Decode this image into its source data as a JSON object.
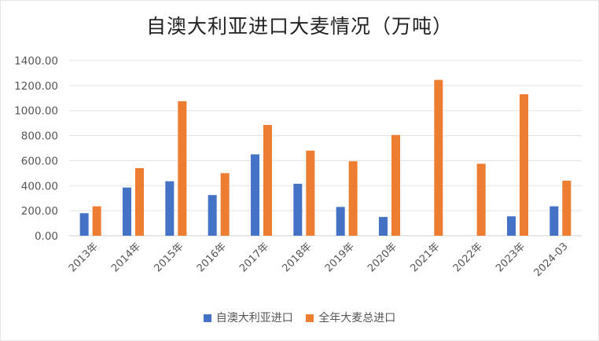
{
  "chart_data": {
    "type": "bar",
    "title": "自澳大利亚进口大麦情况（万吨）",
    "categories": [
      "2013年",
      "2014年",
      "2015年",
      "2016年",
      "2017年",
      "2018年",
      "2019年",
      "2020年",
      "2021年",
      "2022年",
      "2023年",
      "2024-03"
    ],
    "series": [
      {
        "name": "自澳大利亚进口",
        "color": "#4472c4",
        "values": [
          180,
          385,
          435,
          325,
          650,
          415,
          230,
          150,
          null,
          null,
          155,
          235
        ]
      },
      {
        "name": "全年大麦总进口",
        "color": "#ed7d31",
        "values": [
          235,
          540,
          1075,
          500,
          885,
          680,
          595,
          805,
          1245,
          575,
          1130,
          440
        ]
      }
    ],
    "ylim": [
      0,
      1400
    ],
    "yticks": [
      "0.00",
      "200.00",
      "400.00",
      "600.00",
      "800.00",
      "1000.00",
      "1200.00",
      "1400.00"
    ],
    "grid": true,
    "legend": "bottom",
    "xlabel": "",
    "ylabel": ""
  }
}
